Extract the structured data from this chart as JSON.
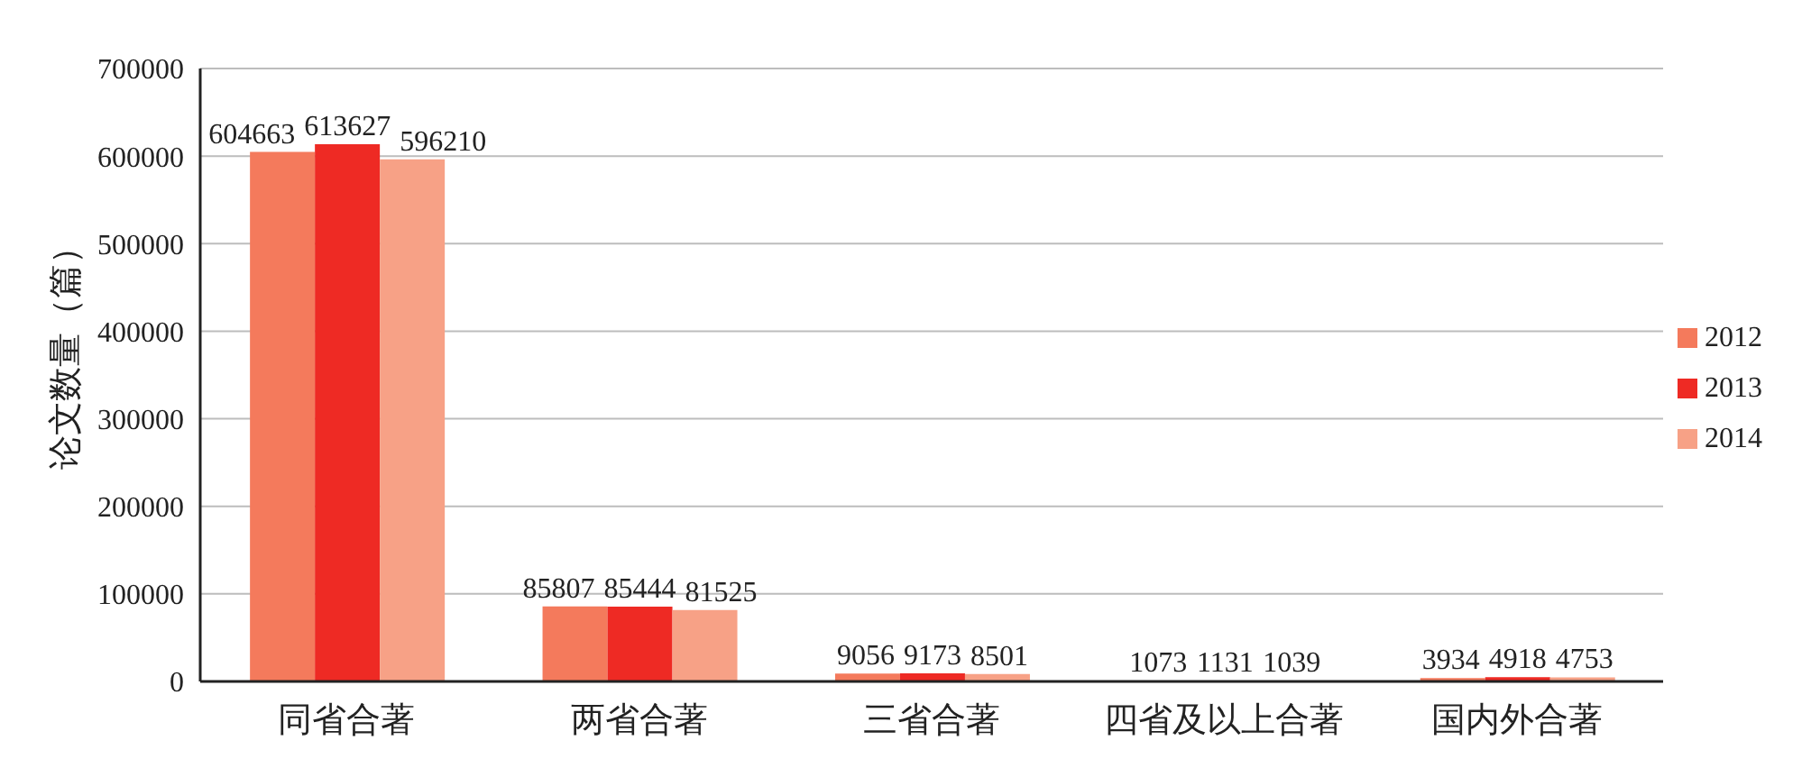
{
  "chart_data": {
    "type": "bar",
    "ylabel": "论文数量（篇）",
    "categories": [
      "同省合著",
      "两省合著",
      "三省合著",
      "四省及以上合著",
      "国内外合著"
    ],
    "series": [
      {
        "name": "2012",
        "color": "#f47a5c",
        "values": [
          604663,
          85807,
          9056,
          1073,
          3934
        ]
      },
      {
        "name": "2013",
        "color": "#ee2a24",
        "values": [
          613627,
          85444,
          9173,
          1131,
          4918
        ]
      },
      {
        "name": "2014",
        "color": "#f7a186",
        "values": [
          596210,
          81525,
          8501,
          1039,
          4753
        ]
      }
    ],
    "ylim": [
      0,
      700000
    ],
    "yticks": [
      0,
      100000,
      200000,
      300000,
      400000,
      500000,
      600000,
      700000
    ],
    "grid": "y",
    "legend": "right",
    "data_labels": true
  }
}
